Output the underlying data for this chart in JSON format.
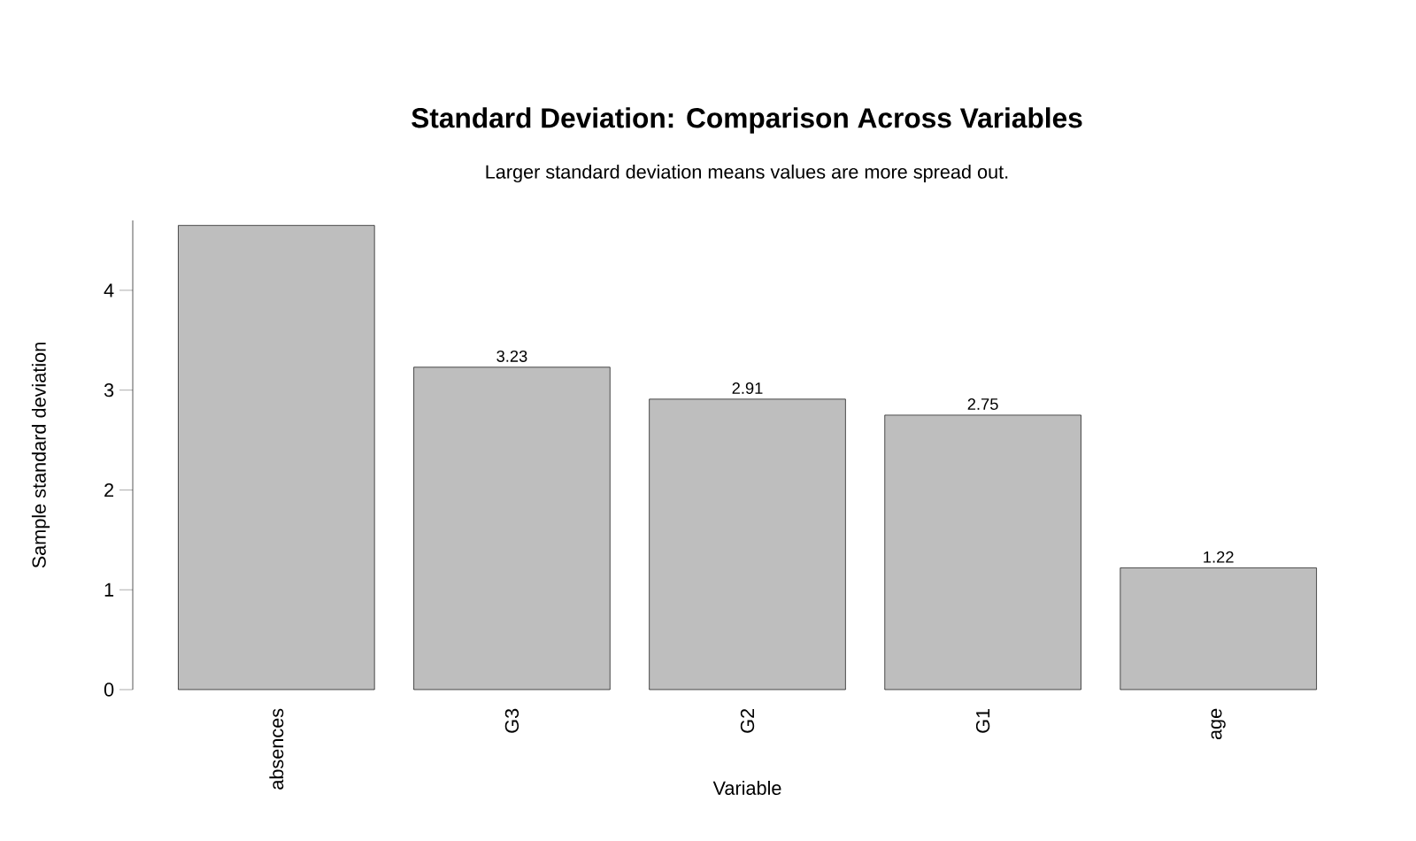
{
  "chart_data": {
    "type": "bar",
    "title": "Standard Deviation: Comparison Across Variables",
    "subtitle": "Larger standard deviation means values are more spread out.",
    "xlabel": "Variable",
    "ylabel": "Sample standard deviation",
    "categories": [
      "absences",
      "G3",
      "G2",
      "G1",
      "age"
    ],
    "values": [
      4.65,
      3.23,
      2.91,
      2.75,
      1.22
    ],
    "value_labels": [
      null,
      "3.23",
      "2.91",
      "2.75",
      "1.22"
    ],
    "color": "#bebebe",
    "ylim": [
      0,
      4.7
    ],
    "yticks": [
      0,
      1,
      2,
      3,
      4
    ]
  }
}
